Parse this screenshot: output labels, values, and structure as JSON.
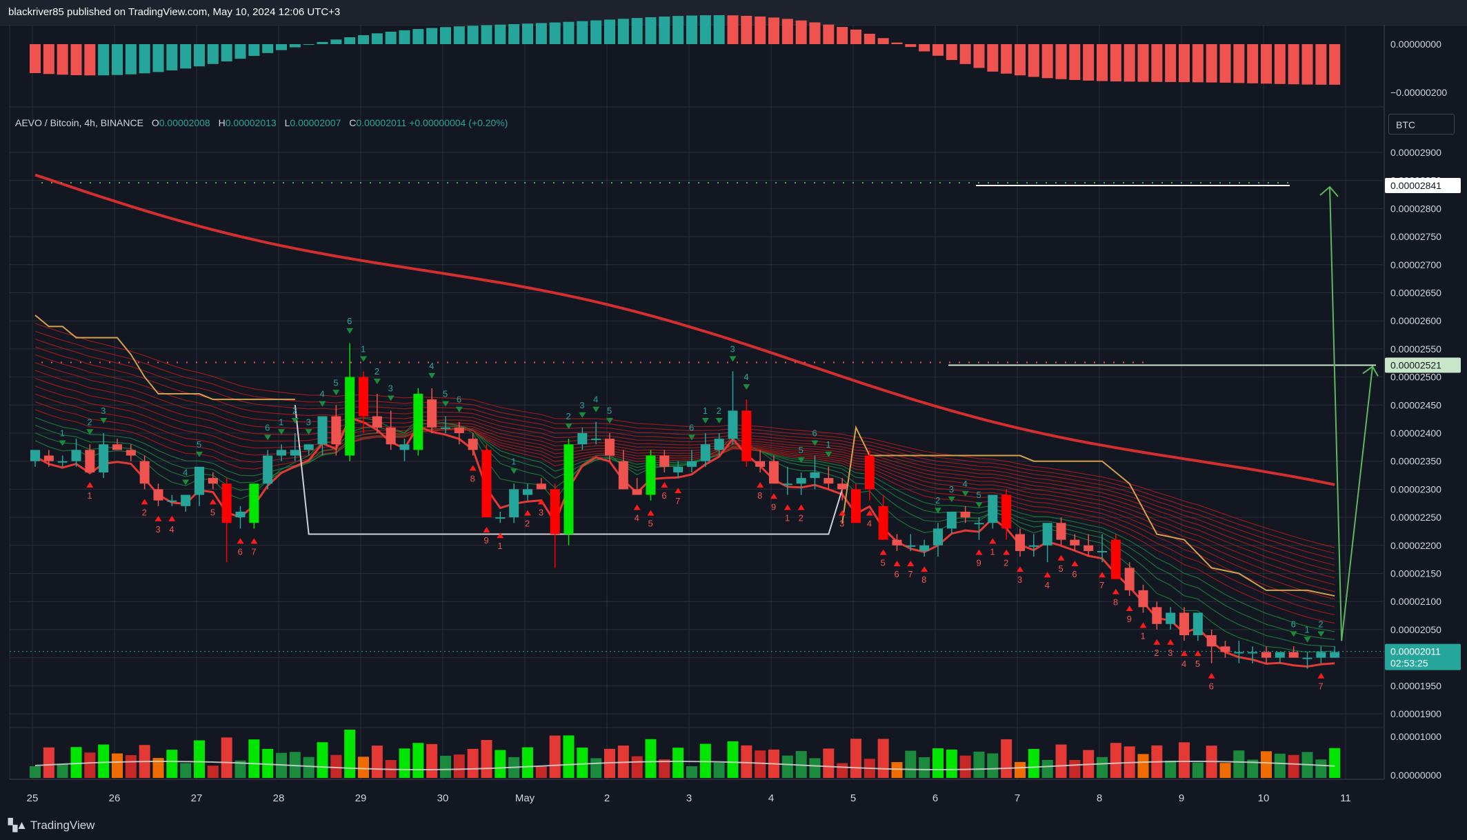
{
  "header": {
    "published_by": "blackriver85 published on TradingView.com, May 10, 2024 12:06 UTC+3"
  },
  "legend": {
    "symbol": "AEVO / Bitcoin, 4h, BINANCE",
    "open_label": "O",
    "open": "0.00002008",
    "high_label": "H",
    "high": "0.00002013",
    "low_label": "L",
    "low": "0.00002007",
    "close_label": "C",
    "close": "0.00002011",
    "change": "+0.00000004 (+0.20%)"
  },
  "currency_button": "BTC",
  "footer": {
    "brand": "TradingView"
  },
  "colors": {
    "background": "#131722",
    "bull": "#26a69a",
    "bear": "#ef5350",
    "bright_bull": "#00e600",
    "bright_bear": "#ff0000",
    "ema_thick": "#d32f2f",
    "trail_line": "#d4a24c",
    "target_arrow": "#5cb85c"
  },
  "price_axis": {
    "ticks": [
      "0.00002900",
      "0.00002850",
      "0.00002800",
      "0.00002750",
      "0.00002700",
      "0.00002650",
      "0.00002600",
      "0.00002550",
      "0.00002500",
      "0.00002450",
      "0.00002400",
      "0.00002350",
      "0.00002300",
      "0.00002250",
      "0.00002200",
      "0.00002150",
      "0.00002100",
      "0.00002050",
      "0.00002000",
      "0.00001950",
      "0.00001900"
    ],
    "tags": [
      {
        "label": "0.00002841",
        "value": 2.841e-05,
        "style": "white"
      },
      {
        "label": "0.00002521",
        "value": 2.521e-05,
        "style": "light-green"
      },
      {
        "label": "0.00002011",
        "value": 2.011e-05,
        "style": "teal",
        "sub": "02:53:25"
      }
    ]
  },
  "oscillator_axis": {
    "ticks": [
      "0.00000000",
      "−0.00000200"
    ]
  },
  "volume_axis": {
    "ticks": [
      "0.00001000",
      "0.00000000"
    ]
  },
  "time_axis": {
    "labels": [
      "25",
      "26",
      "27",
      "28",
      "29",
      "30",
      "May",
      "2",
      "3",
      "4",
      "5",
      "6",
      "7",
      "8",
      "9",
      "10",
      "11"
    ]
  },
  "chart_data": {
    "type": "candlestick",
    "symbol": "AEVO / Bitcoin",
    "interval": "4h",
    "exchange": "BINANCE",
    "y_range": [
      1.87e-05,
      2.93e-05
    ],
    "resistance_levels": [
      2.841e-05,
      2.521e-05
    ],
    "support_level": 2.22e-05,
    "current_price": 2.011e-05,
    "projection": {
      "from": 2.03e-05,
      "to": [
        2.521e-05,
        2.841e-05
      ]
    },
    "candles": [
      [
        2.35e-05,
        2.37e-05,
        2.34e-05,
        2.37e-05
      ],
      [
        2.36e-05,
        2.37e-05,
        2.34e-05,
        2.35e-05
      ],
      [
        2.35e-05,
        2.36e-05,
        2.34e-05,
        2.35e-05
      ],
      [
        2.35e-05,
        2.39e-05,
        2.34e-05,
        2.37e-05
      ],
      [
        2.37e-05,
        2.38e-05,
        2.33e-05,
        2.33e-05
      ],
      [
        2.33e-05,
        2.4e-05,
        2.32e-05,
        2.38e-05
      ],
      [
        2.38e-05,
        2.39e-05,
        2.37e-05,
        2.37e-05
      ],
      [
        2.37e-05,
        2.38e-05,
        2.35e-05,
        2.36e-05
      ],
      [
        2.35e-05,
        2.36e-05,
        2.3e-05,
        2.31e-05
      ],
      [
        2.3e-05,
        2.31e-05,
        2.27e-05,
        2.28e-05
      ],
      [
        2.28e-05,
        2.29e-05,
        2.27e-05,
        2.28e-05
      ],
      [
        2.27e-05,
        2.29e-05,
        2.26e-05,
        2.29e-05
      ],
      [
        2.29e-05,
        2.34e-05,
        2.27e-05,
        2.34e-05
      ],
      [
        2.32e-05,
        2.33e-05,
        2.3e-05,
        2.31e-05
      ],
      [
        2.31e-05,
        2.32e-05,
        2.17e-05,
        2.24e-05
      ],
      [
        2.25e-05,
        2.27e-05,
        2.23e-05,
        2.26e-05
      ],
      [
        2.24e-05,
        2.31e-05,
        2.23e-05,
        2.31e-05
      ],
      [
        2.31e-05,
        2.37e-05,
        2.3e-05,
        2.36e-05
      ],
      [
        2.36e-05,
        2.38e-05,
        2.35e-05,
        2.37e-05
      ],
      [
        2.36e-05,
        2.4e-05,
        2.35e-05,
        2.37e-05
      ],
      [
        2.37e-05,
        2.38e-05,
        2.36e-05,
        2.38e-05
      ],
      [
        2.38e-05,
        2.43e-05,
        2.36e-05,
        2.43e-05
      ],
      [
        2.43e-05,
        2.45e-05,
        2.36e-05,
        2.38e-05
      ],
      [
        2.36e-05,
        2.56e-05,
        2.35e-05,
        2.5e-05
      ],
      [
        2.5e-05,
        2.51e-05,
        2.4e-05,
        2.43e-05
      ],
      [
        2.43e-05,
        2.47e-05,
        2.4e-05,
        2.41e-05
      ],
      [
        2.41e-05,
        2.44e-05,
        2.37e-05,
        2.38e-05
      ],
      [
        2.37e-05,
        2.39e-05,
        2.35e-05,
        2.38e-05
      ],
      [
        2.37e-05,
        2.48e-05,
        2.36e-05,
        2.47e-05
      ],
      [
        2.46e-05,
        2.48e-05,
        2.4e-05,
        2.41e-05
      ],
      [
        2.41e-05,
        2.43e-05,
        2.4e-05,
        2.41e-05
      ],
      [
        2.41e-05,
        2.42e-05,
        2.38e-05,
        2.4e-05
      ],
      [
        2.39e-05,
        2.4e-05,
        2.36e-05,
        2.37e-05
      ],
      [
        2.37e-05,
        2.38e-05,
        2.25e-05,
        2.25e-05
      ],
      [
        2.25e-05,
        2.26e-05,
        2.24e-05,
        2.25e-05
      ],
      [
        2.25e-05,
        2.31e-05,
        2.24e-05,
        2.3e-05
      ],
      [
        2.29e-05,
        2.31e-05,
        2.28e-05,
        2.3e-05
      ],
      [
        2.31e-05,
        2.32e-05,
        2.3e-05,
        2.3e-05
      ],
      [
        2.3e-05,
        2.31e-05,
        2.16e-05,
        2.22e-05
      ],
      [
        2.22e-05,
        2.39e-05,
        2.2e-05,
        2.38e-05
      ],
      [
        2.38e-05,
        2.41e-05,
        2.37e-05,
        2.4e-05
      ],
      [
        2.39e-05,
        2.42e-05,
        2.38e-05,
        2.39e-05
      ],
      [
        2.39e-05,
        2.4e-05,
        2.35e-05,
        2.36e-05
      ],
      [
        2.35e-05,
        2.37e-05,
        2.3e-05,
        2.3e-05
      ],
      [
        2.3e-05,
        2.32e-05,
        2.29e-05,
        2.29e-05
      ],
      [
        2.29e-05,
        2.37e-05,
        2.28e-05,
        2.36e-05
      ],
      [
        2.36e-05,
        2.37e-05,
        2.33e-05,
        2.34e-05
      ],
      [
        2.33e-05,
        2.35e-05,
        2.32e-05,
        2.34e-05
      ],
      [
        2.34e-05,
        2.37e-05,
        2.33e-05,
        2.35e-05
      ],
      [
        2.35e-05,
        2.4e-05,
        2.34e-05,
        2.38e-05
      ],
      [
        2.37e-05,
        2.4e-05,
        2.36e-05,
        2.39e-05
      ],
      [
        2.39e-05,
        2.51e-05,
        2.38e-05,
        2.44e-05
      ],
      [
        2.44e-05,
        2.46e-05,
        2.34e-05,
        2.35e-05
      ],
      [
        2.35e-05,
        2.37e-05,
        2.33e-05,
        2.34e-05
      ],
      [
        2.35e-05,
        2.36e-05,
        2.31e-05,
        2.31e-05
      ],
      [
        2.31e-05,
        2.34e-05,
        2.29e-05,
        2.31e-05
      ],
      [
        2.31e-05,
        2.33e-05,
        2.29e-05,
        2.32e-05
      ],
      [
        2.32e-05,
        2.36e-05,
        2.3e-05,
        2.33e-05
      ],
      [
        2.32e-05,
        2.34e-05,
        2.3e-05,
        2.31e-05
      ],
      [
        2.31e-05,
        2.32e-05,
        2.28e-05,
        2.3e-05
      ],
      [
        2.3e-05,
        2.31e-05,
        2.24e-05,
        2.24e-05
      ],
      [
        2.36e-05,
        2.37e-05,
        2.28e-05,
        2.3e-05
      ],
      [
        2.27e-05,
        2.29e-05,
        2.21e-05,
        2.21e-05
      ],
      [
        2.21e-05,
        2.22e-05,
        2.19e-05,
        2.2e-05
      ],
      [
        2.2e-05,
        2.22e-05,
        2.19e-05,
        2.2e-05
      ],
      [
        2.19e-05,
        2.21e-05,
        2.18e-05,
        2.2e-05
      ],
      [
        2.2e-05,
        2.24e-05,
        2.18e-05,
        2.23e-05
      ],
      [
        2.23e-05,
        2.26e-05,
        2.22e-05,
        2.26e-05
      ],
      [
        2.26e-05,
        2.27e-05,
        2.24e-05,
        2.25e-05
      ],
      [
        2.24e-05,
        2.25e-05,
        2.21e-05,
        2.24e-05
      ],
      [
        2.24e-05,
        2.29e-05,
        2.23e-05,
        2.29e-05
      ],
      [
        2.29e-05,
        2.3e-05,
        2.21e-05,
        2.23e-05
      ],
      [
        2.22e-05,
        2.23e-05,
        2.18e-05,
        2.19e-05
      ],
      [
        2.2e-05,
        2.22e-05,
        2.18e-05,
        2.2e-05
      ],
      [
        2.2e-05,
        2.24e-05,
        2.17e-05,
        2.24e-05
      ],
      [
        2.24e-05,
        2.25e-05,
        2.2e-05,
        2.21e-05
      ],
      [
        2.21e-05,
        2.22e-05,
        2.19e-05,
        2.2e-05
      ],
      [
        2.2e-05,
        2.22e-05,
        2.18e-05,
        2.19e-05
      ],
      [
        2.19e-05,
        2.22e-05,
        2.17e-05,
        2.19e-05
      ],
      [
        2.21e-05,
        2.22e-05,
        2.14e-05,
        2.14e-05
      ],
      [
        2.16e-05,
        2.17e-05,
        2.11e-05,
        2.12e-05
      ],
      [
        2.12e-05,
        2.13e-05,
        2.08e-05,
        2.09e-05
      ],
      [
        2.09e-05,
        2.1e-05,
        2.05e-05,
        2.06e-05
      ],
      [
        2.06e-05,
        2.09e-05,
        2.05e-05,
        2.08e-05
      ],
      [
        2.08e-05,
        2.09e-05,
        2.03e-05,
        2.04e-05
      ],
      [
        2.04e-05,
        2.08e-05,
        2.03e-05,
        2.08e-05
      ],
      [
        2.04e-05,
        2.05e-05,
        1.99e-05,
        2.02e-05
      ],
      [
        2.02e-05,
        2.03e-05,
        2e-05,
        2.01e-05
      ],
      [
        2.01e-05,
        2.03e-05,
        1.99e-05,
        2.01e-05
      ],
      [
        2.01e-05,
        2.02e-05,
        1.99e-05,
        2.01e-05
      ],
      [
        2.01e-05,
        2.02e-05,
        1.99e-05,
        2e-05
      ],
      [
        2e-05,
        2.01e-05,
        1.99e-05,
        2.01e-05
      ],
      [
        2.01e-05,
        2.02e-05,
        2e-05,
        2e-05
      ],
      [
        2e-05,
        2.01e-05,
        1.98e-05,
        2e-05
      ],
      [
        2e-05,
        2.02e-05,
        1.99e-05,
        2.01e-05
      ],
      [
        2e-05,
        2.02e-05,
        2e-05,
        2.01e-05
      ]
    ]
  }
}
